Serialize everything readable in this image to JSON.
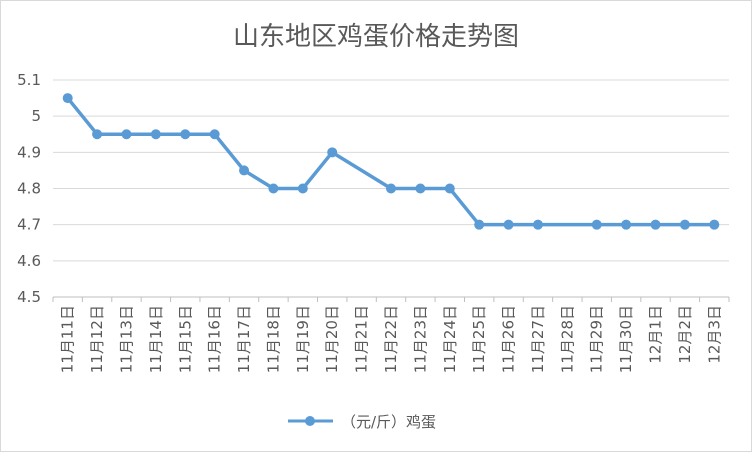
{
  "chart_data": {
    "type": "line",
    "title": "山东地区鸡蛋价格走势图",
    "xlabel": "",
    "ylabel": "",
    "ylim": [
      4.5,
      5.1
    ],
    "yticks": [
      "4.5",
      "4.6",
      "4.7",
      "4.8",
      "4.9",
      "5",
      "5.1"
    ],
    "ytick_values": [
      4.5,
      4.6,
      4.7,
      4.8,
      4.9,
      5.0,
      5.1
    ],
    "grid": "horizontal",
    "legend_position": "bottom",
    "categories": [
      "11月11日",
      "11月12日",
      "11月13日",
      "11月14日",
      "11月15日",
      "11月16日",
      "11月17日",
      "11月18日",
      "11月19日",
      "11月20日",
      "11月21日",
      "11月22日",
      "11月23日",
      "11月24日",
      "11月25日",
      "11月26日",
      "11月27日",
      "11月28日",
      "11月29日",
      "11月30日",
      "12月1日",
      "12月2日",
      "12月3日"
    ],
    "series": [
      {
        "name": "（元/斤）鸡蛋",
        "color": "#5b9bd5",
        "values": [
          5.05,
          4.95,
          4.95,
          4.95,
          4.95,
          4.95,
          4.85,
          4.8,
          4.8,
          4.9,
          null,
          4.8,
          4.8,
          4.8,
          4.7,
          4.7,
          4.7,
          null,
          4.7,
          4.7,
          4.7,
          4.7,
          4.7
        ]
      }
    ]
  }
}
